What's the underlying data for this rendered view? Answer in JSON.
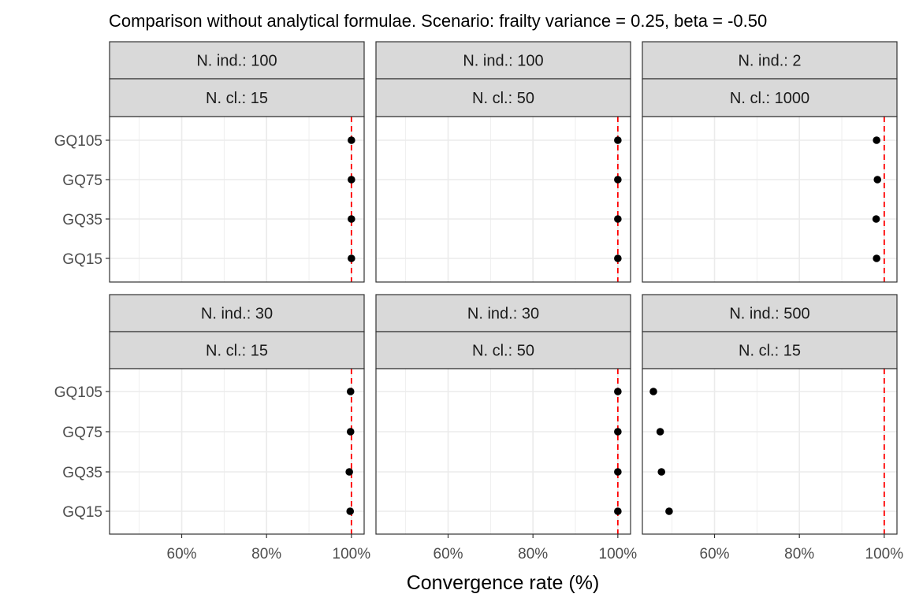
{
  "chart_data": {
    "type": "scatter",
    "title": "Comparison without analytical formulae. Scenario: frailty variance = 0.25, beta = -0.50",
    "xlabel": "Convergence rate (%)",
    "ylabel": "",
    "xlim": [
      43,
      103
    ],
    "x_ticks": [
      60,
      80,
      100
    ],
    "x_tick_labels": [
      "60%",
      "80%",
      "100%"
    ],
    "categories": [
      "GQ105",
      "GQ75",
      "GQ35",
      "GQ15"
    ],
    "reference_line": {
      "x": 100,
      "color": "#ff0000",
      "style": "dashed"
    },
    "grid": true,
    "colors": {
      "point": "#000000",
      "strip_fill": "#d9d9d9",
      "grid": "#ebebeb"
    },
    "panels": [
      {
        "strip_top": "N. ind.: 100",
        "strip_bottom": "N. cl.: 15",
        "values": [
          100,
          100,
          100,
          100
        ]
      },
      {
        "strip_top": "N. ind.: 100",
        "strip_bottom": "N. cl.: 50",
        "values": [
          100,
          100,
          100,
          100
        ]
      },
      {
        "strip_top": "N. ind.: 2",
        "strip_bottom": "N. cl.: 1000",
        "values": [
          98.2,
          98.4,
          98.1,
          98.2
        ]
      },
      {
        "strip_top": "N. ind.: 30",
        "strip_bottom": "N. cl.: 15",
        "values": [
          99.8,
          99.8,
          99.5,
          99.7
        ]
      },
      {
        "strip_top": "N. ind.: 30",
        "strip_bottom": "N. cl.: 50",
        "values": [
          100,
          100,
          100,
          100
        ]
      },
      {
        "strip_top": "N. ind.: 500",
        "strip_bottom": "N. cl.: 15",
        "values": [
          45.6,
          47.2,
          47.5,
          49.3
        ]
      }
    ]
  }
}
